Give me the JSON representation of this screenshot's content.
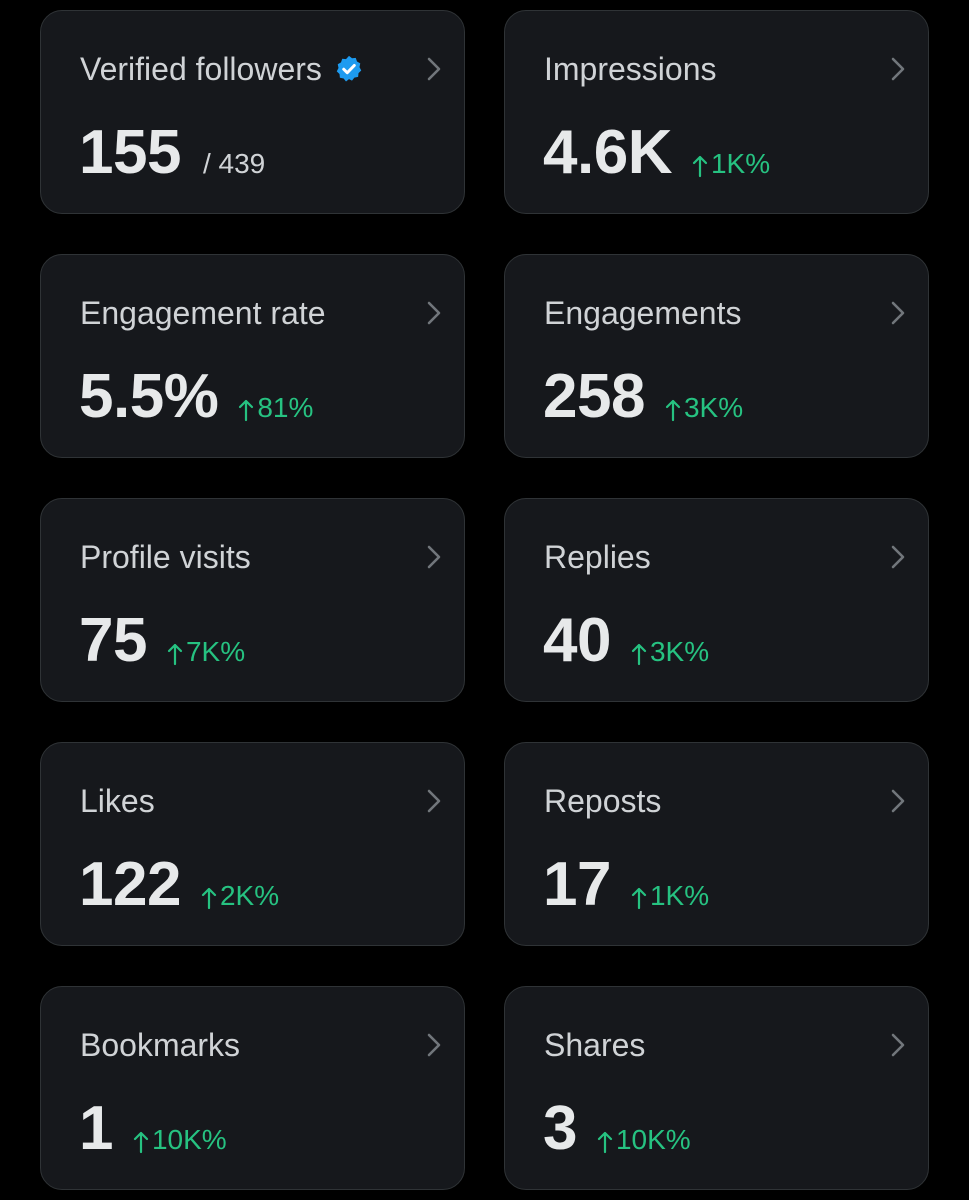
{
  "colors": {
    "background": "#000000",
    "card_background": "#16181c",
    "card_border": "#2f3336",
    "positive_change": "#26c281",
    "verified_badge": "#1d9bf0"
  },
  "cards": [
    {
      "title": "Verified followers",
      "value": "155",
      "sub": "/ 439",
      "change": "",
      "verified_badge": "verified-badge-icon"
    },
    {
      "title": "Impressions",
      "value": "4.6K",
      "change": "1K%"
    },
    {
      "title": "Engagement rate",
      "value": "5.5%",
      "change": "81%"
    },
    {
      "title": "Engagements",
      "value": "258",
      "change": "3K%"
    },
    {
      "title": "Profile visits",
      "value": "75",
      "change": "7K%"
    },
    {
      "title": "Replies",
      "value": "40",
      "change": "3K%"
    },
    {
      "title": "Likes",
      "value": "122",
      "change": "2K%"
    },
    {
      "title": "Reposts",
      "value": "17",
      "change": "1K%"
    },
    {
      "title": "Bookmarks",
      "value": "1",
      "change": "10K%"
    },
    {
      "title": "Shares",
      "value": "3",
      "change": "10K%"
    }
  ]
}
